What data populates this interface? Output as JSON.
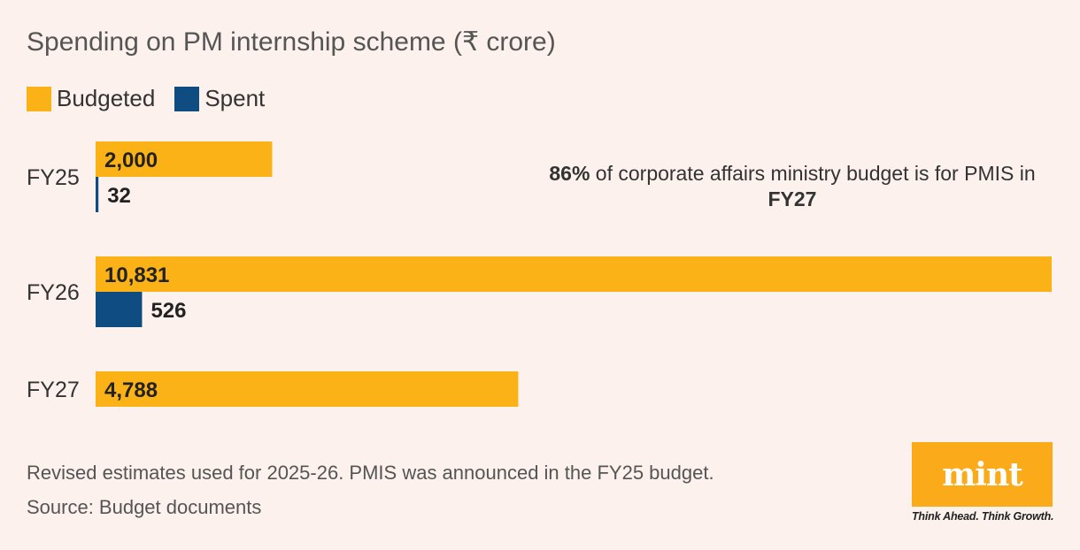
{
  "header": {
    "title": "Spending on PM internship scheme (₹ crore)"
  },
  "legend": {
    "budgeted_label": "Budgeted",
    "spent_label": "Spent"
  },
  "colors": {
    "background": "#fcf1ec",
    "budgeted": "#fbb216",
    "spent": "#0f4c81",
    "text": "#333333"
  },
  "chart_data": {
    "type": "bar",
    "orientation": "horizontal",
    "categories": [
      "FY25",
      "FY26",
      "FY27"
    ],
    "series": [
      {
        "name": "Budgeted",
        "values": [
          2000,
          10831,
          4788
        ],
        "labels": [
          "2,000",
          "10,831",
          "4,788"
        ]
      },
      {
        "name": "Spent",
        "values": [
          32,
          526,
          null
        ],
        "labels": [
          "32",
          "526",
          ""
        ]
      }
    ],
    "xlim": [
      0,
      10831
    ],
    "grid": false,
    "legend": "top-left"
  },
  "annotation": {
    "part1_bold": "86%",
    "part2": " of corporate affairs ministry budget is for PMIS in ",
    "part3_bold": "FY27"
  },
  "footnote": "Revised estimates used for 2025-26. PMIS was announced in the FY25 budget.",
  "source": "Source: Budget documents",
  "logo": {
    "wordmark": "mint",
    "tagline": "Think Ahead. Think Growth."
  }
}
